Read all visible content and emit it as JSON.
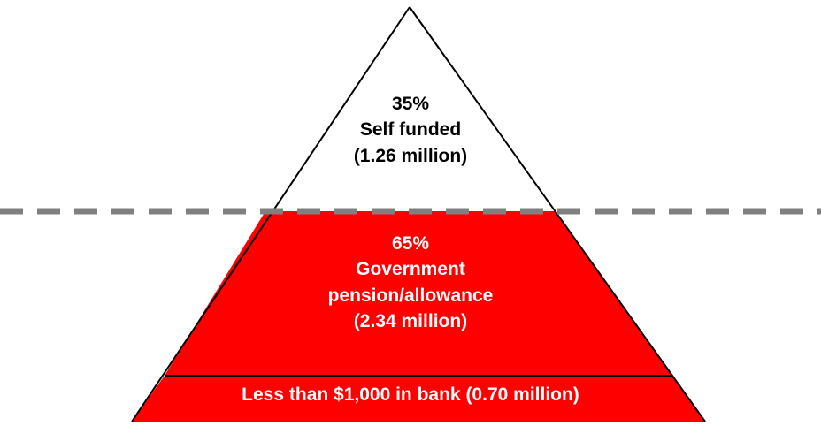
{
  "colors": {
    "top_fill": "#ffffff",
    "body_fill": "#ff0000",
    "outline": "#000000",
    "divider": "#808080"
  },
  "tiers": {
    "top": {
      "percent": "35%",
      "label": "Self funded",
      "count": "(1.26 million)"
    },
    "middle": {
      "percent": "65%",
      "label": "Government",
      "label2": "pension/allowance",
      "count": "(2.34 million)"
    },
    "bottom": {
      "text": "Less than $1,000 in bank (0.70 million)"
    }
  }
}
